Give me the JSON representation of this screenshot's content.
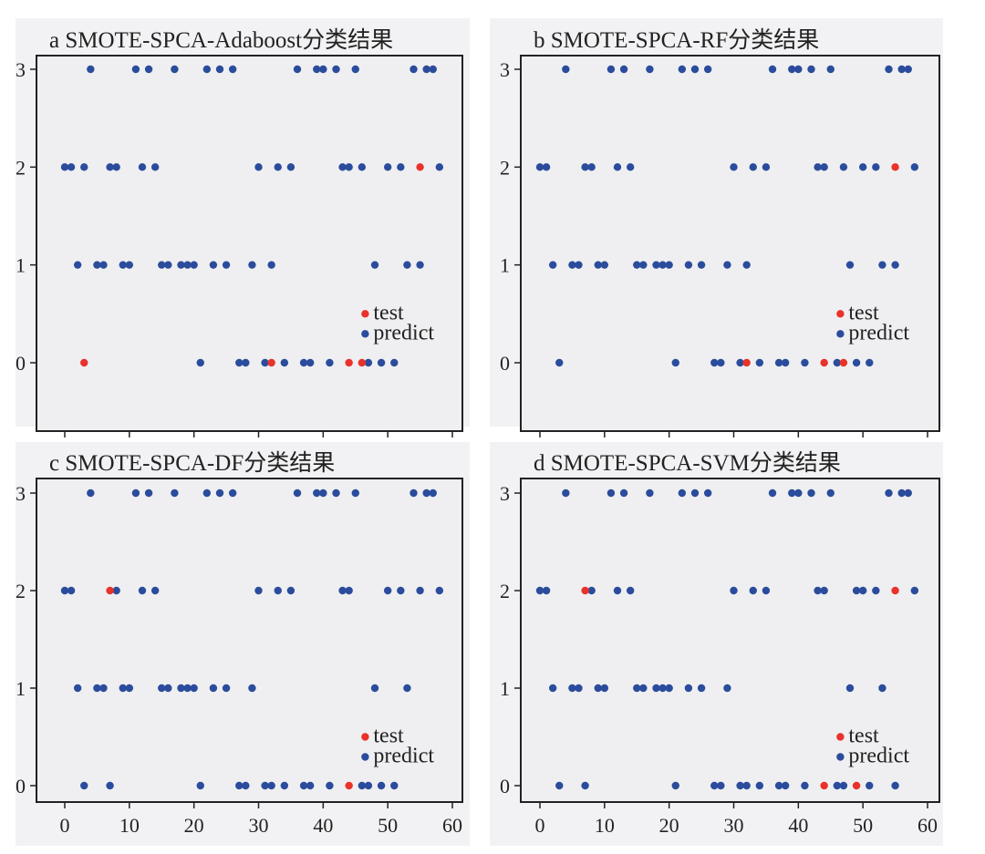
{
  "colors": {
    "test": "#e8322a",
    "predict": "#2b4c9c",
    "plot_bg": "#efeff1",
    "panel_bg": "#f2f2f4",
    "axis": "#222222"
  },
  "chart_data": [
    {
      "type": "scatter",
      "title": "a SMOTE-SPCA-Adaboost分类结果",
      "xlim": [
        0,
        60
      ],
      "ylim": [
        0,
        3
      ],
      "xticks": [
        "0",
        "10",
        "20",
        "30",
        "40",
        "50",
        "60"
      ],
      "yticks": [
        "0",
        "1",
        "2",
        "3"
      ],
      "grid": false,
      "legend_position": "lower-right",
      "series": [
        {
          "name": "test",
          "points": [
            [
              3,
              0
            ],
            [
              32,
              0
            ],
            [
              44,
              0
            ],
            [
              46,
              0
            ],
            [
              55,
              2
            ]
          ]
        },
        {
          "name": "predict",
          "points": [
            [
              4,
              3
            ],
            [
              11,
              3
            ],
            [
              13,
              3
            ],
            [
              17,
              3
            ],
            [
              22,
              3
            ],
            [
              24,
              3
            ],
            [
              26,
              3
            ],
            [
              36,
              3
            ],
            [
              39,
              3
            ],
            [
              40,
              3
            ],
            [
              42,
              3
            ],
            [
              45,
              3
            ],
            [
              54,
              3
            ],
            [
              56,
              3
            ],
            [
              57,
              3
            ],
            [
              0,
              2
            ],
            [
              1,
              2
            ],
            [
              3,
              2
            ],
            [
              7,
              2
            ],
            [
              8,
              2
            ],
            [
              12,
              2
            ],
            [
              14,
              2
            ],
            [
              30,
              2
            ],
            [
              33,
              2
            ],
            [
              35,
              2
            ],
            [
              43,
              2
            ],
            [
              44,
              2
            ],
            [
              46,
              2
            ],
            [
              50,
              2
            ],
            [
              52,
              2
            ],
            [
              58,
              2
            ],
            [
              2,
              1
            ],
            [
              5,
              1
            ],
            [
              6,
              1
            ],
            [
              9,
              1
            ],
            [
              10,
              1
            ],
            [
              15,
              1
            ],
            [
              16,
              1
            ],
            [
              18,
              1
            ],
            [
              19,
              1
            ],
            [
              20,
              1
            ],
            [
              23,
              1
            ],
            [
              25,
              1
            ],
            [
              29,
              1
            ],
            [
              32,
              1
            ],
            [
              48,
              1
            ],
            [
              53,
              1
            ],
            [
              55,
              1
            ],
            [
              21,
              0
            ],
            [
              27,
              0
            ],
            [
              28,
              0
            ],
            [
              31,
              0
            ],
            [
              34,
              0
            ],
            [
              37,
              0
            ],
            [
              38,
              0
            ],
            [
              41,
              0
            ],
            [
              47,
              0
            ],
            [
              49,
              0
            ],
            [
              51,
              0
            ]
          ]
        }
      ]
    },
    {
      "type": "scatter",
      "title": "b SMOTE-SPCA-RF分类结果",
      "xlim": [
        0,
        60
      ],
      "ylim": [
        0,
        3
      ],
      "xticks": [
        "0",
        "10",
        "20",
        "30",
        "40",
        "50",
        "60"
      ],
      "yticks": [
        "0",
        "1",
        "2",
        "3"
      ],
      "grid": false,
      "legend_position": "lower-right",
      "series": [
        {
          "name": "test",
          "points": [
            [
              32,
              0
            ],
            [
              44,
              0
            ],
            [
              47,
              0
            ],
            [
              55,
              2
            ]
          ]
        },
        {
          "name": "predict",
          "points": [
            [
              4,
              3
            ],
            [
              11,
              3
            ],
            [
              13,
              3
            ],
            [
              17,
              3
            ],
            [
              22,
              3
            ],
            [
              24,
              3
            ],
            [
              26,
              3
            ],
            [
              36,
              3
            ],
            [
              39,
              3
            ],
            [
              40,
              3
            ],
            [
              42,
              3
            ],
            [
              45,
              3
            ],
            [
              54,
              3
            ],
            [
              56,
              3
            ],
            [
              57,
              3
            ],
            [
              0,
              2
            ],
            [
              1,
              2
            ],
            [
              7,
              2
            ],
            [
              8,
              2
            ],
            [
              12,
              2
            ],
            [
              14,
              2
            ],
            [
              30,
              2
            ],
            [
              33,
              2
            ],
            [
              35,
              2
            ],
            [
              43,
              2
            ],
            [
              44,
              2
            ],
            [
              47,
              2
            ],
            [
              50,
              2
            ],
            [
              52,
              2
            ],
            [
              58,
              2
            ],
            [
              2,
              1
            ],
            [
              5,
              1
            ],
            [
              6,
              1
            ],
            [
              9,
              1
            ],
            [
              10,
              1
            ],
            [
              15,
              1
            ],
            [
              16,
              1
            ],
            [
              18,
              1
            ],
            [
              19,
              1
            ],
            [
              20,
              1
            ],
            [
              23,
              1
            ],
            [
              25,
              1
            ],
            [
              29,
              1
            ],
            [
              32,
              1
            ],
            [
              48,
              1
            ],
            [
              53,
              1
            ],
            [
              55,
              1
            ],
            [
              3,
              0
            ],
            [
              21,
              0
            ],
            [
              27,
              0
            ],
            [
              28,
              0
            ],
            [
              31,
              0
            ],
            [
              34,
              0
            ],
            [
              37,
              0
            ],
            [
              38,
              0
            ],
            [
              41,
              0
            ],
            [
              46,
              0
            ],
            [
              49,
              0
            ],
            [
              51,
              0
            ]
          ]
        }
      ]
    },
    {
      "type": "scatter",
      "title": "c SMOTE-SPCA-DF分类结果",
      "xlim": [
        0,
        60
      ],
      "ylim": [
        0,
        3
      ],
      "xticks": [
        "0",
        "10",
        "20",
        "30",
        "40",
        "50",
        "60"
      ],
      "yticks": [
        "0",
        "1",
        "2",
        "3"
      ],
      "grid": false,
      "legend_position": "lower-right",
      "series": [
        {
          "name": "test",
          "points": [
            [
              7,
              2
            ],
            [
              44,
              0
            ]
          ]
        },
        {
          "name": "predict",
          "points": [
            [
              4,
              3
            ],
            [
              11,
              3
            ],
            [
              13,
              3
            ],
            [
              17,
              3
            ],
            [
              22,
              3
            ],
            [
              24,
              3
            ],
            [
              26,
              3
            ],
            [
              36,
              3
            ],
            [
              39,
              3
            ],
            [
              40,
              3
            ],
            [
              42,
              3
            ],
            [
              45,
              3
            ],
            [
              54,
              3
            ],
            [
              56,
              3
            ],
            [
              57,
              3
            ],
            [
              0,
              2
            ],
            [
              1,
              2
            ],
            [
              8,
              2
            ],
            [
              12,
              2
            ],
            [
              14,
              2
            ],
            [
              30,
              2
            ],
            [
              33,
              2
            ],
            [
              35,
              2
            ],
            [
              43,
              2
            ],
            [
              44,
              2
            ],
            [
              50,
              2
            ],
            [
              52,
              2
            ],
            [
              55,
              2
            ],
            [
              58,
              2
            ],
            [
              2,
              1
            ],
            [
              5,
              1
            ],
            [
              6,
              1
            ],
            [
              9,
              1
            ],
            [
              10,
              1
            ],
            [
              15,
              1
            ],
            [
              16,
              1
            ],
            [
              18,
              1
            ],
            [
              19,
              1
            ],
            [
              20,
              1
            ],
            [
              23,
              1
            ],
            [
              25,
              1
            ],
            [
              29,
              1
            ],
            [
              48,
              1
            ],
            [
              53,
              1
            ],
            [
              3,
              0
            ],
            [
              7,
              0
            ],
            [
              21,
              0
            ],
            [
              27,
              0
            ],
            [
              28,
              0
            ],
            [
              31,
              0
            ],
            [
              32,
              0
            ],
            [
              34,
              0
            ],
            [
              37,
              0
            ],
            [
              38,
              0
            ],
            [
              41,
              0
            ],
            [
              46,
              0
            ],
            [
              47,
              0
            ],
            [
              49,
              0
            ],
            [
              51,
              0
            ]
          ]
        }
      ]
    },
    {
      "type": "scatter",
      "title": "d SMOTE-SPCA-SVM分类结果",
      "xlim": [
        0,
        60
      ],
      "ylim": [
        0,
        3
      ],
      "xticks": [
        "0",
        "10",
        "20",
        "30",
        "40",
        "50",
        "60"
      ],
      "yticks": [
        "0",
        "1",
        "2",
        "3"
      ],
      "grid": false,
      "legend_position": "lower-right",
      "series": [
        {
          "name": "test",
          "points": [
            [
              7,
              2
            ],
            [
              44,
              0
            ],
            [
              49,
              0
            ],
            [
              55,
              2
            ]
          ]
        },
        {
          "name": "predict",
          "points": [
            [
              4,
              3
            ],
            [
              11,
              3
            ],
            [
              13,
              3
            ],
            [
              17,
              3
            ],
            [
              22,
              3
            ],
            [
              24,
              3
            ],
            [
              26,
              3
            ],
            [
              36,
              3
            ],
            [
              39,
              3
            ],
            [
              40,
              3
            ],
            [
              42,
              3
            ],
            [
              45,
              3
            ],
            [
              54,
              3
            ],
            [
              56,
              3
            ],
            [
              57,
              3
            ],
            [
              0,
              2
            ],
            [
              1,
              2
            ],
            [
              8,
              2
            ],
            [
              12,
              2
            ],
            [
              14,
              2
            ],
            [
              30,
              2
            ],
            [
              33,
              2
            ],
            [
              35,
              2
            ],
            [
              43,
              2
            ],
            [
              44,
              2
            ],
            [
              49,
              2
            ],
            [
              50,
              2
            ],
            [
              52,
              2
            ],
            [
              58,
              2
            ],
            [
              2,
              1
            ],
            [
              5,
              1
            ],
            [
              6,
              1
            ],
            [
              9,
              1
            ],
            [
              10,
              1
            ],
            [
              15,
              1
            ],
            [
              16,
              1
            ],
            [
              18,
              1
            ],
            [
              19,
              1
            ],
            [
              20,
              1
            ],
            [
              23,
              1
            ],
            [
              25,
              1
            ],
            [
              29,
              1
            ],
            [
              48,
              1
            ],
            [
              53,
              1
            ],
            [
              3,
              0
            ],
            [
              7,
              0
            ],
            [
              21,
              0
            ],
            [
              27,
              0
            ],
            [
              28,
              0
            ],
            [
              31,
              0
            ],
            [
              32,
              0
            ],
            [
              34,
              0
            ],
            [
              37,
              0
            ],
            [
              38,
              0
            ],
            [
              41,
              0
            ],
            [
              46,
              0
            ],
            [
              47,
              0
            ],
            [
              51,
              0
            ],
            [
              55,
              0
            ]
          ]
        }
      ]
    }
  ]
}
